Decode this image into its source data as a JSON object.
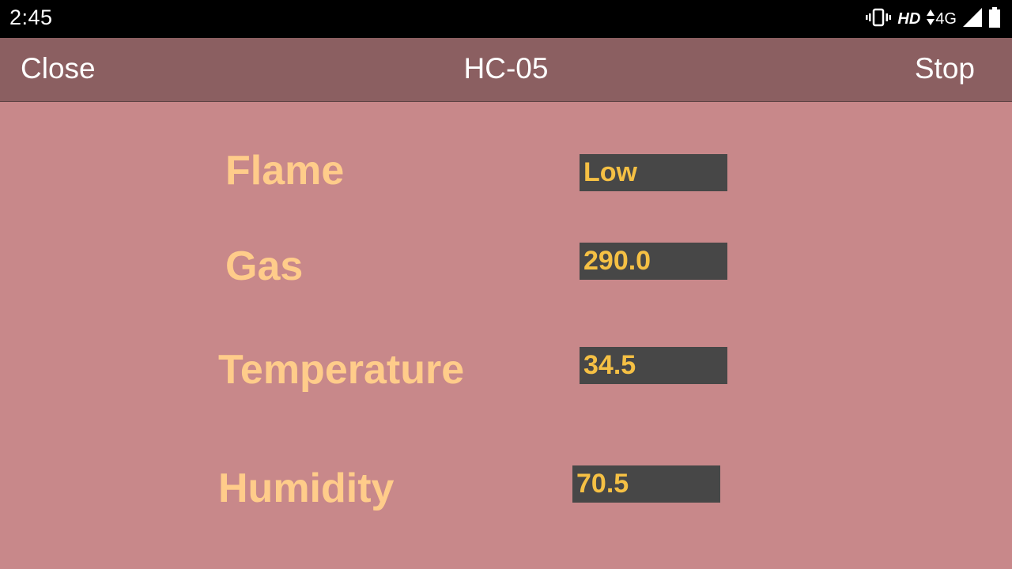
{
  "status_bar": {
    "time": "2:45",
    "hd": "HD",
    "network": "4G",
    "icons": [
      "vibrate-icon",
      "data-arrows-icon",
      "signal-icon",
      "battery-icon"
    ]
  },
  "app_bar": {
    "close_label": "Close",
    "title": "HC-05",
    "stop_label": "Stop"
  },
  "sensors": [
    {
      "label": "Flame",
      "value": "Low"
    },
    {
      "label": "Gas",
      "value": "290.0"
    },
    {
      "label": "Temperature",
      "value": "34.5"
    },
    {
      "label": "Humidity",
      "value": "70.5"
    }
  ],
  "colors": {
    "background": "#c8888a",
    "app_bar": "#8b5f61",
    "label_text": "#ffcc8a",
    "value_box": "#474747",
    "value_text": "#f5c044"
  }
}
